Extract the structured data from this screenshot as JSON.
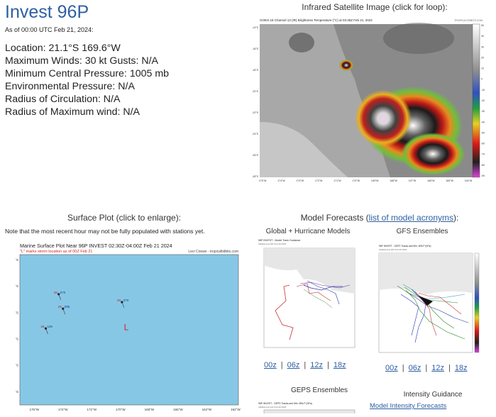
{
  "storm": {
    "title": "Invest 96P",
    "as_of": "As of 00:00 UTC Feb 21, 2024:",
    "details": [
      "Location: 21.1°S 169.6°W",
      "Maximum Winds: 30 kt  Gusts: N/A",
      "Minimum Central Pressure: 1005 mb",
      "Environmental Pressure: N/A",
      "Radius of Circulation: N/A",
      "Radius of Maximum wind: N/A"
    ]
  },
  "satellite": {
    "heading": "Infrared Satellite Image (click for loop):",
    "image_title": "GOES-18 Channel 13 (IR) Brightness Temperature (°C) at 03:35Z Feb 21, 2024",
    "credit": "TROPICALTIDBITS.COM",
    "lat_labels": [
      "-14°S",
      "-16°S",
      "-18°S",
      "-20°S",
      "-22°S",
      "-24°S",
      "-26°S",
      "-28°S"
    ],
    "lon_labels": [
      "175°W",
      "174°W",
      "173°W",
      "172°W",
      "171°W",
      "170°W",
      "169°W",
      "168°W",
      "167°W",
      "166°W",
      "165°W",
      "164°W"
    ],
    "scale_labels": [
      "50",
      "40",
      "30",
      "20",
      "10",
      "0",
      "-10",
      "-20",
      "-30",
      "-40",
      "-50",
      "-60",
      "-70",
      "-80",
      "-90"
    ]
  },
  "surface": {
    "heading": "Surface Plot (click to enlarge):",
    "note": "Note that the most recent hour may not be fully populated with stations yet.",
    "plot_title": "Marine Surface Plot Near 96P INVEST 02:30Z-04:00Z Feb 21 2024",
    "plot_subtitle": "\"L\" marks storm location as of 00Z Feb 21",
    "credit": "Levi Cowan - tropicaltidbits.com",
    "lat_labels": [
      "16°S",
      "18°S",
      "20°S",
      "22°S",
      "24°S",
      "26°S"
    ],
    "lon_labels": [
      "176°W",
      "174°W",
      "172°W",
      "170°W",
      "168°W",
      "166°W",
      "164°W",
      "162°W"
    ],
    "storm_marker": "L",
    "stations": [
      {
        "t": "28",
        "p": "070",
        "lat": -18.6,
        "lon": -174.3
      },
      {
        "t": "29",
        "p": "095",
        "lat": -19.7,
        "lon": -174.0
      },
      {
        "t": "28",
        "p": "070",
        "lat": -19.2,
        "lon": -169.9
      },
      {
        "t": "28",
        "p": "100",
        "lat": -21.2,
        "lon": -175.2
      }
    ]
  },
  "models": {
    "heading_prefix": "Model Forecasts (",
    "heading_link": "list of model acronyms",
    "heading_suffix": "):",
    "global_heading": "Global + Hurricane Models",
    "gfs_heading": "GFS Ensembles",
    "global_plot_title": "96P INVEST - Model Track Guidance",
    "global_plot_sub": "Initialized at 18z Feb 20 2024",
    "gfs_plot_title": "96P INVEST - GEFS Tracks and Min. MSLP (hPa)",
    "gfs_plot_sub": "Initialized at 18z Feb 20 2024",
    "runs": [
      "00z",
      "06z",
      "12z",
      "18z"
    ],
    "geps_heading": "GEPS Ensembles",
    "geps_plot_title": "96P INVEST - GEPS Tracks and Min. MSLP (hPa)",
    "geps_plot_sub": "Initialized at 12z Feb 20 2024",
    "intensity_heading": "Intensity Guidance",
    "intensity_link": "Model Intensity Forecasts"
  },
  "colors": {
    "accent": "#2e5fa3",
    "ocean": "#87c7e6",
    "storm_marker": "#d42020"
  }
}
